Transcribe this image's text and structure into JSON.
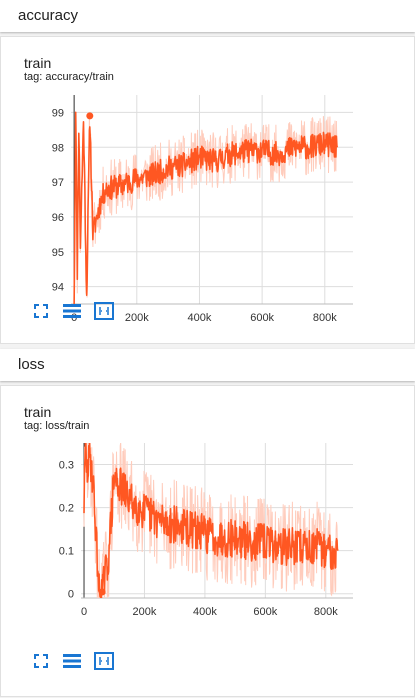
{
  "sections": [
    {
      "title": "accuracy",
      "card": {
        "title": "train",
        "tag": "tag: accuracy/train"
      }
    },
    {
      "title": "loss",
      "card": {
        "title": "train",
        "tag": "tag: loss/train"
      }
    }
  ],
  "colors": {
    "accent": "#ff5722",
    "smoothed_light": "#ffccbc",
    "icon_blue": "#1976d2",
    "grid": "#dddddd"
  },
  "toolbar_icons": [
    "fullscreen-icon",
    "toggle-log-scale-icon",
    "fit-domain-icon"
  ],
  "chart_data": [
    {
      "type": "line",
      "title": "train",
      "subtitle": "tag: accuracy/train",
      "xlim": [
        -10000,
        890000
      ],
      "ylim": [
        93.5,
        99.5
      ],
      "x_ticks": [
        0,
        200000,
        400000,
        600000,
        800000
      ],
      "x_tick_labels": [
        "0",
        "200k",
        "400k",
        "600k",
        "800k"
      ],
      "y_ticks": [
        94,
        95,
        96,
        97,
        98,
        99
      ],
      "y_tick_labels": [
        "94",
        "95",
        "96",
        "97",
        "98",
        "99"
      ],
      "grid": true,
      "series": [
        {
          "x": [
            0,
            5000,
            10000,
            15000,
            20000,
            30000,
            40000,
            50000,
            60000,
            80000,
            100000,
            150000,
            200000,
            250000,
            300000,
            350000,
            400000,
            450000,
            500000,
            550000,
            600000,
            650000,
            700000,
            750000,
            800000,
            840000
          ],
          "y": [
            93.6,
            99.3,
            94.5,
            98.6,
            95.2,
            98.8,
            93.7,
            98.9,
            95.5,
            96.3,
            96.8,
            96.9,
            97.1,
            97.2,
            97.4,
            97.5,
            97.7,
            97.6,
            97.8,
            97.9,
            97.9,
            97.8,
            98.0,
            98.0,
            98.1,
            98.0
          ]
        }
      ]
    },
    {
      "type": "line",
      "title": "train",
      "subtitle": "tag: loss/train",
      "xlim": [
        -10000,
        890000
      ],
      "ylim": [
        -0.01,
        0.35
      ],
      "x_ticks": [
        0,
        200000,
        400000,
        600000,
        800000
      ],
      "x_tick_labels": [
        "0",
        "200k",
        "400k",
        "600k",
        "800k"
      ],
      "y_ticks": [
        0,
        0.1,
        0.2,
        0.3
      ],
      "y_tick_labels": [
        "0",
        "0.1",
        "0.2",
        "0.3"
      ],
      "grid": true,
      "series": [
        {
          "x": [
            0,
            5000,
            10000,
            20000,
            30000,
            50000,
            60000,
            80000,
            100000,
            150000,
            200000,
            250000,
            300000,
            350000,
            400000,
            450000,
            500000,
            550000,
            600000,
            650000,
            700000,
            750000,
            800000,
            840000
          ],
          "y": [
            0.21,
            0.34,
            0.28,
            0.32,
            0.26,
            0.004,
            0.004,
            0.08,
            0.27,
            0.22,
            0.19,
            0.17,
            0.16,
            0.15,
            0.14,
            0.13,
            0.13,
            0.12,
            0.12,
            0.11,
            0.11,
            0.11,
            0.1,
            0.1
          ]
        }
      ]
    }
  ]
}
